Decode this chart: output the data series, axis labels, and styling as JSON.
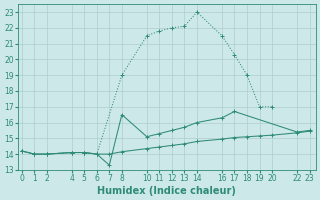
{
  "line1_x": [
    0,
    1,
    2,
    4,
    5,
    6,
    8,
    10,
    11,
    12,
    13,
    14,
    16,
    17,
    18,
    19,
    20
  ],
  "line1_y": [
    14.2,
    14.0,
    14.0,
    14.1,
    14.1,
    14.0,
    19.0,
    21.5,
    21.8,
    22.0,
    22.1,
    23.0,
    21.5,
    20.3,
    19.0,
    17.0,
    17.0
  ],
  "line2_x": [
    0,
    1,
    2,
    4,
    5,
    6,
    7,
    8,
    10,
    11,
    12,
    13,
    14,
    16,
    17,
    22,
    23
  ],
  "line2_y": [
    14.2,
    14.0,
    14.0,
    14.1,
    14.1,
    14.0,
    13.3,
    16.5,
    15.1,
    15.3,
    15.5,
    15.7,
    16.0,
    16.3,
    16.7,
    15.4,
    15.5
  ],
  "line3_x": [
    0,
    1,
    2,
    4,
    5,
    6,
    7,
    8,
    10,
    11,
    12,
    13,
    14,
    16,
    17,
    18,
    19,
    20,
    22,
    23
  ],
  "line3_y": [
    14.2,
    14.0,
    14.0,
    14.1,
    14.1,
    14.0,
    14.0,
    14.15,
    14.35,
    14.45,
    14.55,
    14.65,
    14.8,
    14.95,
    15.05,
    15.1,
    15.15,
    15.2,
    15.35,
    15.45
  ],
  "xlim": [
    -0.3,
    23.5
  ],
  "ylim": [
    13.0,
    23.5
  ],
  "xticks": [
    0,
    1,
    2,
    4,
    5,
    6,
    7,
    8,
    10,
    11,
    12,
    13,
    14,
    16,
    17,
    18,
    19,
    20,
    22,
    23
  ],
  "yticks": [
    13,
    14,
    15,
    16,
    17,
    18,
    19,
    20,
    21,
    22,
    23
  ],
  "xlabel": "Humidex (Indice chaleur)",
  "line_color": "#2e8b74",
  "bg_color": "#cce8e8",
  "grid_color": "#aecece",
  "tick_fontsize": 5.5,
  "label_fontsize": 7.0
}
